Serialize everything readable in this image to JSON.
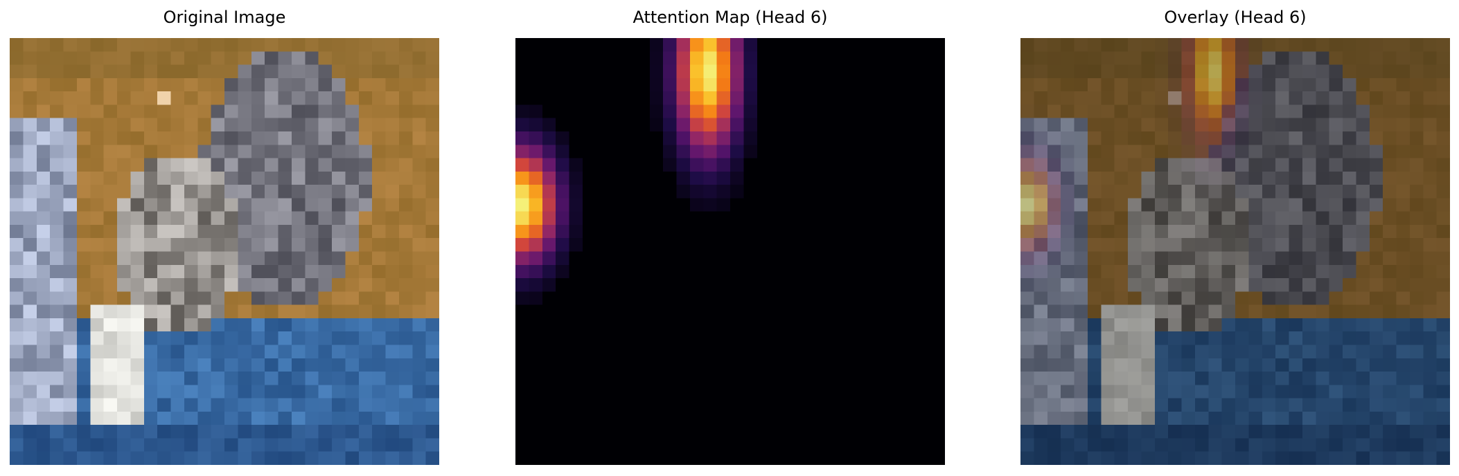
{
  "panels": [
    {
      "title": "Original Image"
    },
    {
      "title": "Attention Map (Head 6)"
    },
    {
      "title": "Overlay (Head 6)"
    }
  ],
  "colors": {
    "background": "#ffffff",
    "sky_brown": "#8a6a30",
    "water_blue": "#2a5a96",
    "attention_bright": "#f5e86a",
    "attention_dark": "#000004"
  }
}
